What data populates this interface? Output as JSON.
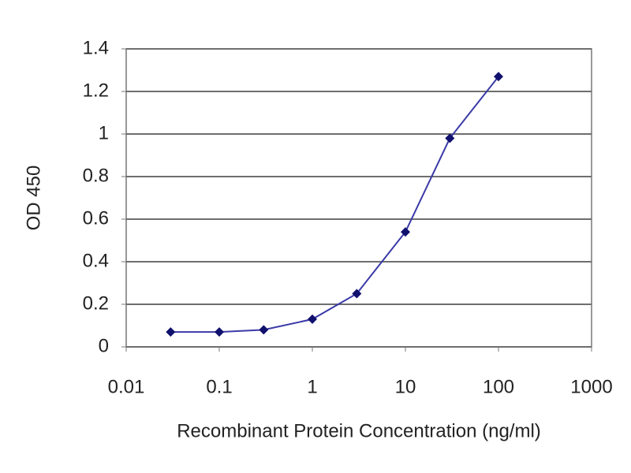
{
  "chart_data": {
    "type": "line",
    "x_label": "Recombinant Protein Concentration (ng/ml)",
    "y_label": "OD 450",
    "x": [
      0.03,
      0.1,
      0.3,
      1,
      3,
      10,
      30,
      100
    ],
    "values": [
      0.07,
      0.07,
      0.08,
      0.13,
      0.25,
      0.54,
      0.98,
      1.27
    ],
    "color": "#3a3aa8",
    "marker_color": "#10106e",
    "x_log": true,
    "xlim": [
      0.01,
      1000
    ],
    "xticks": [
      0.01,
      0.1,
      1,
      10,
      100,
      1000
    ],
    "ylim": [
      0,
      1.4
    ],
    "yticks": [
      0,
      0.2,
      0.4,
      0.6,
      0.8,
      1,
      1.2,
      1.4
    ],
    "grid": true
  }
}
